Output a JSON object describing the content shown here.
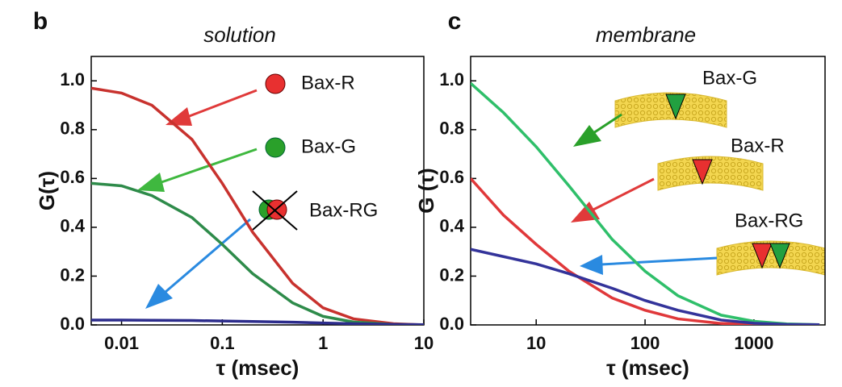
{
  "chart_data": [
    {
      "type": "line",
      "panel": "b",
      "title": "solution",
      "x_label": "τ (msec)",
      "y_label": "G(τ)",
      "log_x": true,
      "xlim": [
        0.005,
        10
      ],
      "ylim": [
        0,
        1.1
      ],
      "xticks": [
        0.01,
        0.1,
        1,
        10
      ],
      "yticks": [
        {
          "value": 0,
          "label": "0.0"
        },
        0.2,
        0.4,
        0.6,
        0.8,
        {
          "value": 1,
          "label": "1.0"
        }
      ],
      "x": [
        0.005,
        0.01,
        0.02,
        0.05,
        0.1,
        0.2,
        0.5,
        1,
        2,
        5,
        10
      ],
      "series": [
        {
          "name": "Bax-R",
          "color": "#c8322e",
          "values": [
            0.97,
            0.95,
            0.9,
            0.76,
            0.58,
            0.38,
            0.17,
            0.07,
            0.025,
            0.005,
            0
          ]
        },
        {
          "name": "Bax-G",
          "color": "#2e8b4a",
          "values": [
            0.58,
            0.57,
            0.53,
            0.44,
            0.33,
            0.21,
            0.09,
            0.035,
            0.012,
            0.002,
            0
          ]
        },
        {
          "name": "Bax-RG",
          "color": "#2c2c8c",
          "values": [
            0.02,
            0.02,
            0.019,
            0.018,
            0.016,
            0.014,
            0.011,
            0.008,
            0.005,
            0.002,
            0.001
          ]
        }
      ]
    },
    {
      "type": "line",
      "panel": "c",
      "title": "membrane",
      "x_label": "τ (msec)",
      "y_label": "G (τ)",
      "log_x": true,
      "xlim": [
        2.5,
        4500
      ],
      "ylim": [
        0,
        1.1
      ],
      "xticks": [
        10,
        100,
        1000
      ],
      "yticks": [
        {
          "value": 0,
          "label": "0.0"
        },
        0.2,
        0.4,
        0.6,
        0.8,
        {
          "value": 1,
          "label": "1.0"
        }
      ],
      "x": [
        2.5,
        5,
        10,
        20,
        50,
        100,
        200,
        500,
        1000,
        2000,
        4000
      ],
      "series": [
        {
          "name": "Bax-G",
          "color": "#2fbf6a",
          "values": [
            0.99,
            0.87,
            0.73,
            0.57,
            0.35,
            0.22,
            0.12,
            0.04,
            0.015,
            0.004,
            0.001
          ]
        },
        {
          "name": "Bax-R",
          "color": "#e0383a",
          "values": [
            0.6,
            0.45,
            0.33,
            0.22,
            0.11,
            0.06,
            0.025,
            0.006,
            0.002,
            0.001,
            0
          ]
        },
        {
          "name": "Bax-RG",
          "color": "#33339a",
          "values": [
            0.31,
            0.28,
            0.25,
            0.21,
            0.15,
            0.1,
            0.06,
            0.02,
            0.007,
            0.002,
            0.001
          ]
        }
      ]
    }
  ]
}
